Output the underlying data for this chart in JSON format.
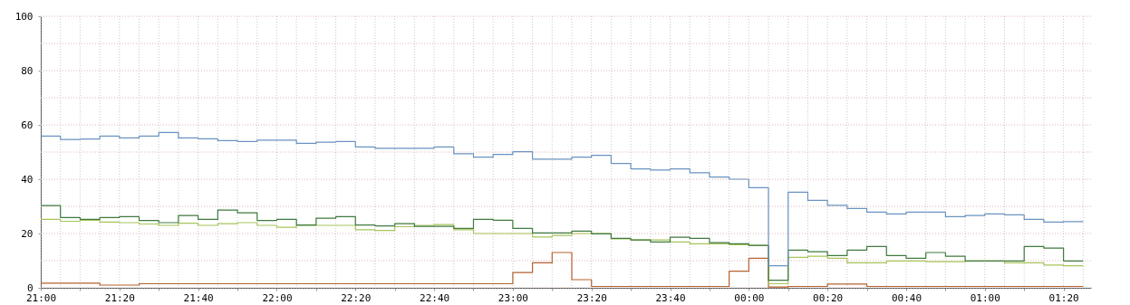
{
  "chart_data": {
    "type": "step",
    "x": [
      "2000-01-01T21:00",
      "2000-01-01T21:05",
      "2000-01-01T21:10",
      "2000-01-01T21:15",
      "2000-01-01T21:20",
      "2000-01-01T21:25",
      "2000-01-01T21:30",
      "2000-01-01T21:35",
      "2000-01-01T21:40",
      "2000-01-01T21:45",
      "2000-01-01T21:50",
      "2000-01-01T21:55",
      "2000-01-01T22:00",
      "2000-01-01T22:05",
      "2000-01-01T22:10",
      "2000-01-01T22:15",
      "2000-01-01T22:20",
      "2000-01-01T22:25",
      "2000-01-01T22:30",
      "2000-01-01T22:35",
      "2000-01-01T22:40",
      "2000-01-01T22:45",
      "2000-01-01T22:50",
      "2000-01-01T22:55",
      "2000-01-01T23:00",
      "2000-01-01T23:05",
      "2000-01-01T23:10",
      "2000-01-01T23:15",
      "2000-01-01T23:20",
      "2000-01-01T23:25",
      "2000-01-01T23:30",
      "2000-01-01T23:35",
      "2000-01-01T23:40",
      "2000-01-01T23:45",
      "2000-01-01T23:50",
      "2000-01-01T23:55",
      "2000-01-02T00:00",
      "2000-01-02T00:05",
      "2000-01-02T00:10",
      "2000-01-02T00:15",
      "2000-01-02T00:20",
      "2000-01-02T00:25",
      "2000-01-02T00:30",
      "2000-01-02T00:35",
      "2000-01-02T00:40",
      "2000-01-02T00:45",
      "2000-01-02T00:50",
      "2000-01-02T00:55",
      "2000-01-02T01:00",
      "2000-01-02T01:05",
      "2000-01-02T01:10",
      "2000-01-02T01:15",
      "2000-01-02T01:20",
      "2000-01-02T01:25"
    ],
    "series": [
      {
        "color": "#b5622e",
        "values": [
          1.7,
          1.7,
          1.7,
          1.0,
          1.0,
          1.5,
          1.5,
          1.5,
          1.5,
          1.5,
          1.5,
          1.5,
          1.5,
          1.5,
          1.5,
          1.5,
          1.5,
          1.5,
          1.5,
          1.5,
          1.5,
          1.5,
          1.5,
          1.5,
          5.6,
          9.2,
          13.0,
          3.0,
          0.5,
          0.5,
          0.5,
          0.5,
          0.5,
          0.5,
          0.5,
          6.1,
          10.9,
          0.3,
          0.5,
          0.5,
          1.4,
          1.4,
          0.5,
          0.5,
          0.5,
          0.5,
          0.5,
          0.5,
          0.5,
          0.5,
          0.5,
          0.5,
          0.5,
          0.5
        ]
      },
      {
        "color": "#a8c45a",
        "values": [
          25.2,
          24.5,
          24.9,
          24.2,
          24.0,
          23.5,
          23.0,
          23.8,
          23.0,
          23.6,
          24.0,
          23.0,
          22.3,
          23.0,
          23.0,
          23.0,
          21.4,
          21.1,
          22.5,
          23.0,
          23.3,
          21.4,
          20.0,
          20.0,
          20.0,
          18.7,
          19.3,
          20.0,
          20.0,
          18.0,
          17.6,
          17.6,
          16.9,
          16.2,
          16.2,
          15.9,
          15.6,
          1.5,
          11.2,
          11.6,
          10.9,
          9.2,
          9.2,
          9.9,
          9.9,
          9.6,
          9.6,
          9.9,
          9.9,
          9.2,
          9.2,
          8.4,
          8.1,
          8.1
        ]
      },
      {
        "color": "#3f7a3f",
        "values": [
          30.3,
          25.9,
          25.2,
          25.9,
          26.2,
          24.8,
          24.0,
          26.6,
          25.2,
          28.6,
          27.6,
          24.8,
          25.2,
          23.1,
          25.6,
          26.2,
          23.1,
          22.8,
          23.6,
          22.6,
          22.6,
          21.9,
          25.2,
          24.9,
          21.9,
          20.2,
          20.2,
          20.9,
          19.9,
          18.2,
          17.6,
          16.9,
          18.6,
          18.2,
          16.6,
          16.2,
          15.6,
          2.8,
          13.9,
          13.3,
          11.9,
          13.9,
          15.2,
          11.9,
          10.9,
          13.0,
          11.6,
          9.9,
          9.9,
          9.9,
          15.2,
          14.6,
          9.9,
          9.9
        ]
      },
      {
        "color": "#6a93c0",
        "values": [
          55.9,
          54.6,
          54.8,
          55.9,
          55.2,
          55.9,
          57.2,
          55.2,
          54.9,
          54.2,
          53.9,
          54.4,
          54.4,
          53.2,
          53.6,
          53.9,
          51.9,
          51.4,
          51.4,
          51.4,
          51.9,
          49.4,
          48.1,
          49.1,
          50.1,
          47.4,
          47.4,
          48.1,
          48.8,
          45.8,
          43.8,
          43.4,
          43.8,
          42.4,
          40.8,
          40.0,
          36.9,
          8.1,
          35.2,
          32.2,
          30.4,
          29.2,
          27.9,
          27.2,
          27.9,
          27.9,
          26.2,
          26.6,
          27.2,
          26.9,
          25.2,
          24.2,
          24.4,
          24.4
        ]
      }
    ],
    "xlim": [
      "2000-01-01T21:00",
      "2000-01-02T01:27"
    ],
    "xticks": [
      {
        "value": "2000-01-01T21:00",
        "label": "21:00"
      },
      {
        "value": "2000-01-01T21:05",
        "label": null
      },
      {
        "value": "2000-01-01T21:10",
        "label": null
      },
      {
        "value": "2000-01-01T21:15",
        "label": null
      },
      {
        "value": "2000-01-01T21:20",
        "label": "21:20"
      },
      {
        "value": "2000-01-01T21:25",
        "label": null
      },
      {
        "value": "2000-01-01T21:30",
        "label": null
      },
      {
        "value": "2000-01-01T21:35",
        "label": null
      },
      {
        "value": "2000-01-01T21:40",
        "label": "21:40"
      },
      {
        "value": "2000-01-01T21:45",
        "label": null
      },
      {
        "value": "2000-01-01T21:50",
        "label": null
      },
      {
        "value": "2000-01-01T21:55",
        "label": null
      },
      {
        "value": "2000-01-01T22:00",
        "label": "22:00"
      },
      {
        "value": "2000-01-01T22:05",
        "label": null
      },
      {
        "value": "2000-01-01T22:10",
        "label": null
      },
      {
        "value": "2000-01-01T22:15",
        "label": null
      },
      {
        "value": "2000-01-01T22:20",
        "label": "22:20"
      },
      {
        "value": "2000-01-01T22:25",
        "label": null
      },
      {
        "value": "2000-01-01T22:30",
        "label": null
      },
      {
        "value": "2000-01-01T22:35",
        "label": null
      },
      {
        "value": "2000-01-01T22:40",
        "label": "22:40"
      },
      {
        "value": "2000-01-01T22:45",
        "label": null
      },
      {
        "value": "2000-01-01T22:50",
        "label": null
      },
      {
        "value": "2000-01-01T22:55",
        "label": null
      },
      {
        "value": "2000-01-01T23:00",
        "label": "23:00"
      },
      {
        "value": "2000-01-01T23:05",
        "label": null
      },
      {
        "value": "2000-01-01T23:10",
        "label": null
      },
      {
        "value": "2000-01-01T23:15",
        "label": null
      },
      {
        "value": "2000-01-01T23:20",
        "label": "23:20"
      },
      {
        "value": "2000-01-01T23:25",
        "label": null
      },
      {
        "value": "2000-01-01T23:30",
        "label": null
      },
      {
        "value": "2000-01-01T23:35",
        "label": null
      },
      {
        "value": "2000-01-01T23:40",
        "label": "23:40"
      },
      {
        "value": "2000-01-01T23:45",
        "label": null
      },
      {
        "value": "2000-01-01T23:50",
        "label": null
      },
      {
        "value": "2000-01-01T23:55",
        "label": null
      },
      {
        "value": "2000-01-02T00:00",
        "label": "00:00"
      },
      {
        "value": "2000-01-02T00:05",
        "label": null
      },
      {
        "value": "2000-01-02T00:10",
        "label": null
      },
      {
        "value": "2000-01-02T00:15",
        "label": null
      },
      {
        "value": "2000-01-02T00:20",
        "label": "00:20"
      },
      {
        "value": "2000-01-02T00:25",
        "label": null
      },
      {
        "value": "2000-01-02T00:30",
        "label": null
      },
      {
        "value": "2000-01-02T00:35",
        "label": null
      },
      {
        "value": "2000-01-02T00:40",
        "label": "00:40"
      },
      {
        "value": "2000-01-02T00:45",
        "label": null
      },
      {
        "value": "2000-01-02T00:50",
        "label": null
      },
      {
        "value": "2000-01-02T00:55",
        "label": null
      },
      {
        "value": "2000-01-02T01:00",
        "label": "01:00"
      },
      {
        "value": "2000-01-02T01:05",
        "label": null
      },
      {
        "value": "2000-01-02T01:10",
        "label": null
      },
      {
        "value": "2000-01-02T01:15",
        "label": null
      },
      {
        "value": "2000-01-02T01:20",
        "label": "01:20"
      },
      {
        "value": "2000-01-02T01:25",
        "label": null
      }
    ],
    "ylim": [
      0,
      100
    ],
    "yticks": [
      0,
      {
        "value": 10,
        "label": null
      },
      20,
      {
        "value": 30,
        "label": null
      },
      40,
      {
        "value": 50,
        "label": null
      },
      60,
      {
        "value": 70,
        "label": null
      },
      80,
      {
        "value": 90,
        "label": null
      },
      100
    ],
    "grid": true,
    "line_style": "solid"
  }
}
